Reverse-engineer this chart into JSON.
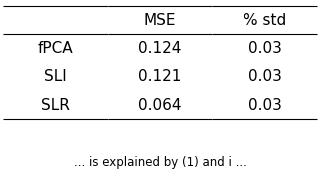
{
  "col_headers": [
    "",
    "MSE",
    "% std"
  ],
  "rows": [
    [
      "fPCA",
      "0.124",
      "0.03"
    ],
    [
      "SLI",
      "0.121",
      "0.03"
    ],
    [
      "SLR",
      "0.064",
      "0.03"
    ]
  ],
  "background_color": "#ffffff",
  "text_color": "#000000",
  "font_size": 11,
  "caption": "is explained by (1) and i"
}
